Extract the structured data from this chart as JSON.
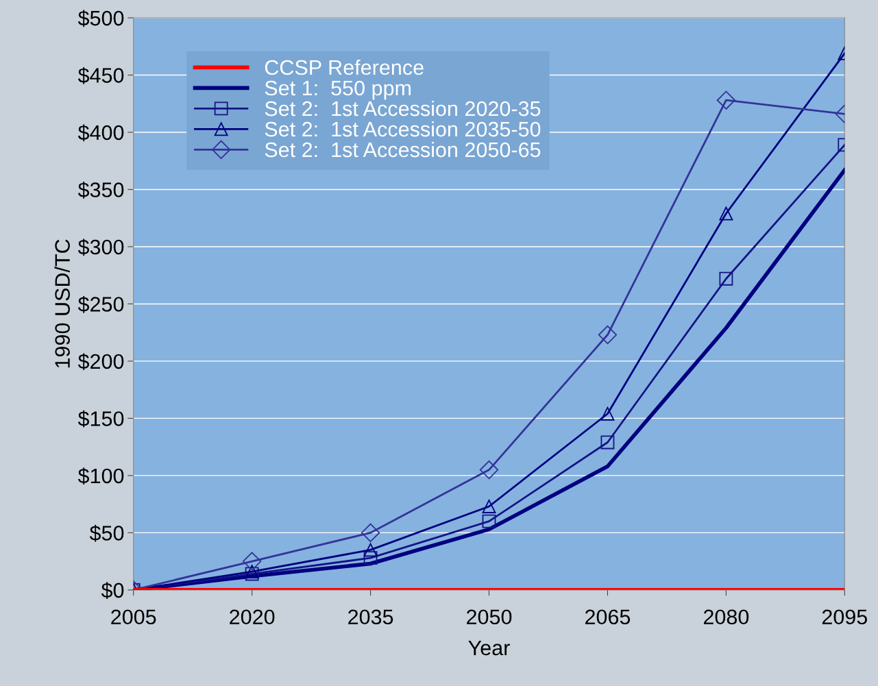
{
  "chart_data": {
    "type": "line",
    "xlabel": "Year",
    "ylabel": "1990 USD/TC",
    "x": [
      2005,
      2020,
      2035,
      2050,
      2065,
      2080,
      2095
    ],
    "xlim": [
      2005,
      2095
    ],
    "xticks": [
      2005,
      2020,
      2035,
      2050,
      2065,
      2080,
      2095
    ],
    "ylim": [
      0,
      500
    ],
    "yticks": [
      {
        "value": 0,
        "label": "$0"
      },
      {
        "value": 50,
        "label": "$50"
      },
      {
        "value": 100,
        "label": "$100"
      },
      {
        "value": 150,
        "label": "$150"
      },
      {
        "value": 200,
        "label": "$200"
      },
      {
        "value": 250,
        "label": "$250"
      },
      {
        "value": 300,
        "label": "$300"
      },
      {
        "value": 350,
        "label": "$350"
      },
      {
        "value": 400,
        "label": "$400"
      },
      {
        "value": 450,
        "label": "$450"
      },
      {
        "value": 500,
        "label": "$500"
      }
    ],
    "grid": "y",
    "legend": "top left",
    "series": [
      {
        "name": "CCSP Reference",
        "color": "#ff0000",
        "marker": "none",
        "values": [
          0,
          0,
          0,
          0,
          0,
          0,
          0
        ]
      },
      {
        "name": "Set 1:  550 ppm",
        "color": "#000080",
        "marker": "none",
        "values": [
          0,
          12,
          23,
          53,
          108,
          229,
          367
        ]
      },
      {
        "name": "Set 2:  1st Accession 2020-35",
        "color": "#141485",
        "marker": "square",
        "values": [
          0,
          14,
          28,
          60,
          129,
          272,
          389
        ]
      },
      {
        "name": "Set 2:  1st Accession 2035-50",
        "color": "#000080",
        "marker": "triangle",
        "values": [
          0,
          16,
          35,
          73,
          154,
          329,
          469
        ]
      },
      {
        "name": "Set 2:  1st Accession 2050-65",
        "color": "#333399",
        "marker": "diamond",
        "values": [
          0,
          25,
          50,
          105,
          223,
          428,
          416
        ]
      }
    ]
  }
}
